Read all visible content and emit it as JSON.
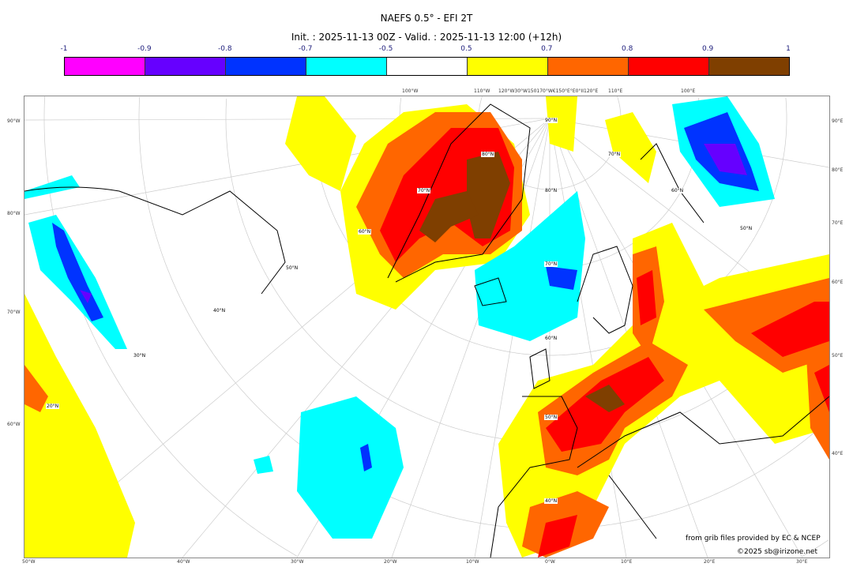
{
  "title": "NAEFS 0.5° - EFI 2T",
  "subtitle": "Init. : 2025-11-13 00Z - Valid. : 2025-11-13 12:00 (+12h)",
  "colorbar": {
    "ticks": [
      "-1",
      "-0.9",
      "-0.8",
      "-0.7",
      "-0.5",
      "0.5",
      "0.7",
      "0.8",
      "0.9",
      "1"
    ],
    "colors": [
      "#ff00ff",
      "#6600ff",
      "#0033ff",
      "#00ffff",
      "#ffffff",
      "#ffff00",
      "#ff6600",
      "#ff0000",
      "#7f3f00"
    ]
  },
  "map": {
    "top_labels": [
      "100°W",
      "110°W",
      "120°W30°W150170°W€150°E°E0°II120°E",
      "110°E",
      "100°E"
    ],
    "bottom_labels": [
      "50°W",
      "40°W",
      "30°W",
      "20°W",
      "10°W",
      "0°W",
      "10°E",
      "20°E",
      "30°E"
    ],
    "left_labels": [
      "90°W",
      "80°W",
      "70°W",
      "60°W"
    ],
    "right_labels": [
      "90°E",
      "80°E",
      "70°E",
      "60°E",
      "50°E",
      "40°E"
    ],
    "lat_labels": [
      "90°N",
      "80°N",
      "70°N",
      "60°N",
      "50°N",
      "40°N",
      "30°N",
      "20°N",
      "80°N",
      "70°N",
      "60°N",
      "50°N",
      "70°N",
      "60°N",
      "50°N",
      "40°N"
    ]
  },
  "credits": {
    "source": "from grib files provided by EC & NCEP",
    "copyright": "©2025 sb@irizone.net"
  }
}
